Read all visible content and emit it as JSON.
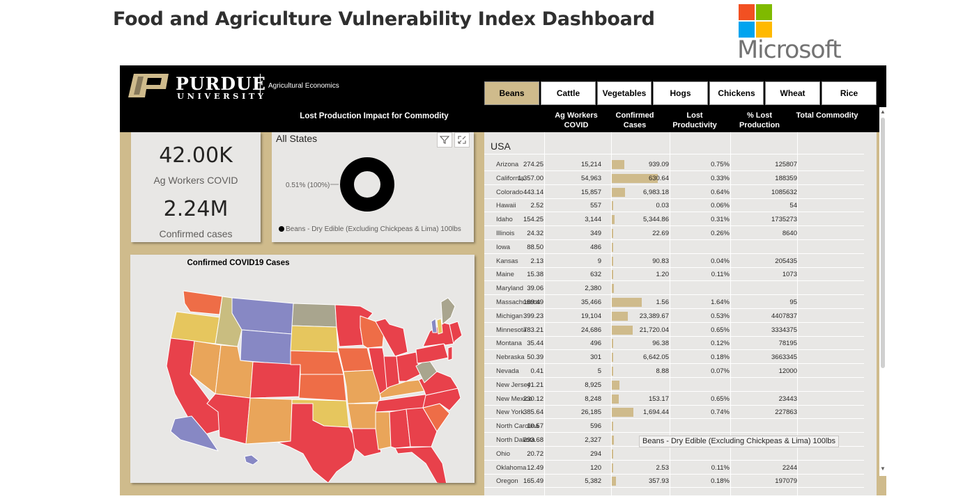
{
  "page": {
    "title": "Food and Agriculture Vulnerability Index Dashboard"
  },
  "microsoft_logo": {
    "text": "Microsoft",
    "colors": [
      "#f25022",
      "#7fba00",
      "#00a4ef",
      "#ffb900"
    ]
  },
  "header": {
    "logo_name": "PURDUE",
    "logo_sub": "UNIVERSITY",
    "department": "Agricultural Economics",
    "chart_title": "Lost Production Impact for Commodity"
  },
  "tabs": [
    {
      "label": "Beans",
      "active": true
    },
    {
      "label": "Cattle",
      "active": false
    },
    {
      "label": "Vegetables",
      "active": false
    },
    {
      "label": "Hogs",
      "active": false
    },
    {
      "label": "Chickens",
      "active": false
    },
    {
      "label": "Wheat",
      "active": false
    },
    {
      "label": "Rice",
      "active": false
    }
  ],
  "kpis": {
    "ag_workers_value": "42.00K",
    "ag_workers_label": "Ag Workers COVID",
    "confirmed_value": "2.24M",
    "confirmed_label": "Confirmed cases"
  },
  "donut": {
    "title": "All States",
    "slice_label": "0.51% (100%)",
    "legend": "Beans - Dry Edible (Excluding Chickpeas & Lima) 100lbs",
    "filter_icon": "filter-icon",
    "focus_icon": "focus-mode-icon"
  },
  "map": {
    "title": "Confirmed COVID19 Cases",
    "legend_colors": {
      "high": "#e8414b",
      "upper": "#ee6d47",
      "mid": "#e9a55a",
      "low": "#e6c65e",
      "lower": "#c9bd80",
      "muted": "#a9a58e",
      "none": "#8788c4"
    }
  },
  "table": {
    "columns": {
      "ag_workers": "Ag Workers\nCOVID",
      "confirmed": "Confirmed\nCases",
      "lost": "Lost\nProductivity",
      "pct": "% Lost\nProduction",
      "total": "Total Commodity"
    },
    "group_label": "USA",
    "bar_color": "#cfbb8c",
    "rows": [
      {
        "state": "Arizona",
        "ag": "274.25",
        "confirmed": "15,214",
        "lost": "939.09",
        "pct": "0.75%",
        "total": "125807",
        "cases": 15214
      },
      {
        "state": "California",
        "ag": "1,357.00",
        "confirmed": "54,963",
        "lost": "630.64",
        "pct": "0.33%",
        "total": "188359",
        "cases": 54963
      },
      {
        "state": "Colorado",
        "ag": "443.14",
        "confirmed": "15,857",
        "lost": "6,983.18",
        "pct": "0.64%",
        "total": "1085632",
        "cases": 15857
      },
      {
        "state": "Hawaii",
        "ag": "2.52",
        "confirmed": "557",
        "lost": "0.03",
        "pct": "0.06%",
        "total": "54",
        "cases": 557
      },
      {
        "state": "Idaho",
        "ag": "154.25",
        "confirmed": "3,144",
        "lost": "5,344.86",
        "pct": "0.31%",
        "total": "1735273",
        "cases": 3144
      },
      {
        "state": "Illinois",
        "ag": "24.32",
        "confirmed": "349",
        "lost": "22.69",
        "pct": "0.26%",
        "total": "8640",
        "cases": 349
      },
      {
        "state": "Iowa",
        "ag": "88.50",
        "confirmed": "486",
        "lost": "",
        "pct": "",
        "total": "",
        "cases": 486
      },
      {
        "state": "Kansas",
        "ag": "2.13",
        "confirmed": "9",
        "lost": "90.83",
        "pct": "0.04%",
        "total": "205435",
        "cases": 9
      },
      {
        "state": "Maine",
        "ag": "15.38",
        "confirmed": "632",
        "lost": "1.20",
        "pct": "0.11%",
        "total": "1073",
        "cases": 632
      },
      {
        "state": "Maryland",
        "ag": "39.06",
        "confirmed": "2,380",
        "lost": "",
        "pct": "",
        "total": "",
        "cases": 2380
      },
      {
        "state": "Massachusetts",
        "ag": "189.49",
        "confirmed": "35,466",
        "lost": "1.56",
        "pct": "1.64%",
        "total": "95",
        "cases": 35466
      },
      {
        "state": "Michigan",
        "ag": "399.23",
        "confirmed": "19,104",
        "lost": "23,389.67",
        "pct": "0.53%",
        "total": "4407837",
        "cases": 19104
      },
      {
        "state": "Minnesota",
        "ag": "783.21",
        "confirmed": "24,686",
        "lost": "21,720.04",
        "pct": "0.65%",
        "total": "3334375",
        "cases": 24686
      },
      {
        "state": "Montana",
        "ag": "35.44",
        "confirmed": "496",
        "lost": "96.38",
        "pct": "0.12%",
        "total": "78195",
        "cases": 496
      },
      {
        "state": "Nebraska",
        "ag": "50.39",
        "confirmed": "301",
        "lost": "6,642.05",
        "pct": "0.18%",
        "total": "3663345",
        "cases": 301
      },
      {
        "state": "Nevada",
        "ag": "0.41",
        "confirmed": "5",
        "lost": "8.88",
        "pct": "0.07%",
        "total": "12000",
        "cases": 5
      },
      {
        "state": "New Jersey",
        "ag": "41.21",
        "confirmed": "8,925",
        "lost": "",
        "pct": "",
        "total": "",
        "cases": 8925
      },
      {
        "state": "New Mexico",
        "ag": "230.12",
        "confirmed": "8,248",
        "lost": "153.17",
        "pct": "0.65%",
        "total": "23443",
        "cases": 8248
      },
      {
        "state": "New York",
        "ag": "385.64",
        "confirmed": "26,185",
        "lost": "1,694.44",
        "pct": "0.74%",
        "total": "227863",
        "cases": 26185
      },
      {
        "state": "North Carolina",
        "ag": "10.57",
        "confirmed": "596",
        "lost": "",
        "pct": "",
        "total": "",
        "cases": 596
      },
      {
        "state": "North Dakota",
        "ag": "293.68",
        "confirmed": "2,327",
        "lost": "",
        "pct": "",
        "total": "",
        "cases": 2327
      },
      {
        "state": "Ohio",
        "ag": "20.72",
        "confirmed": "294",
        "lost": "",
        "pct": "",
        "total": "",
        "cases": 294
      },
      {
        "state": "Oklahoma",
        "ag": "12.49",
        "confirmed": "120",
        "lost": "2.53",
        "pct": "0.11%",
        "total": "2244",
        "cases": 120
      },
      {
        "state": "Oregon",
        "ag": "165.49",
        "confirmed": "5,382",
        "lost": "357.93",
        "pct": "0.18%",
        "total": "197079",
        "cases": 5382
      }
    ],
    "tooltip": "Beans - Dry Edible (Excluding Chickpeas & Lima) 100lbs"
  }
}
